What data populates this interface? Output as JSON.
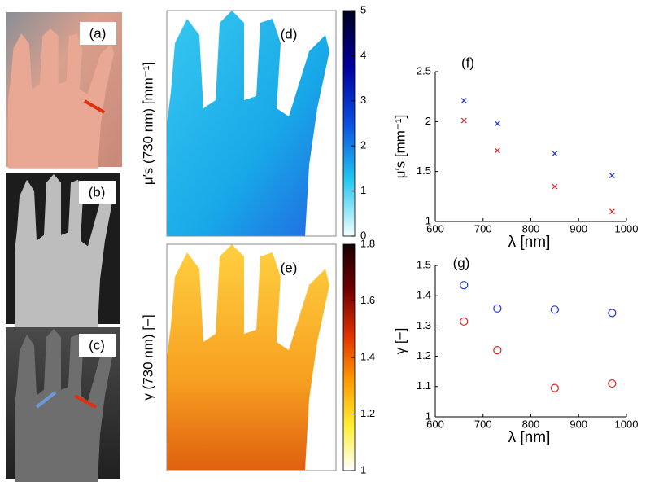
{
  "panels": [
    {
      "label": "(a)"
    },
    {
      "label": "(b)"
    },
    {
      "label": "(c)"
    }
  ],
  "chart_data": [
    {
      "type": "heatmap",
      "label": "(d)",
      "ylabel": "μ′s (730 nm) [mm⁻¹]",
      "colorbar_lim": [
        0,
        5
      ],
      "colorbar_ticks": [
        0,
        1,
        2,
        3,
        4,
        5
      ],
      "colormap": [
        "#f2ffff",
        "#22c8f0",
        "#0a4fe0",
        "#0000a0",
        "#00001e"
      ]
    },
    {
      "type": "heatmap",
      "label": "(e)",
      "ylabel": "γ (730 nm) [−]",
      "colorbar_lim": [
        1,
        1.8
      ],
      "colorbar_ticks": [
        1,
        1.2,
        1.4,
        1.6,
        1.8
      ],
      "colormap": [
        "#ffffff",
        "#ffee30",
        "#ff9a00",
        "#e03000",
        "#700000",
        "#1a0000"
      ]
    },
    {
      "type": "scatter",
      "label": "(f)",
      "xlabel": "λ [nm]",
      "ylabel": "μ′s [mm⁻¹]",
      "marker": "x",
      "xlim": [
        600,
        1000
      ],
      "xticks": [
        600,
        700,
        800,
        900,
        1000
      ],
      "ylim": [
        1,
        2.5
      ],
      "yticks": [
        1,
        1.5,
        2,
        2.5
      ],
      "series": [
        {
          "color": "#2233cc",
          "x": [
            660,
            730,
            850,
            970
          ],
          "values": [
            2.21,
            1.98,
            1.68,
            1.46
          ]
        },
        {
          "color": "#dd2222",
          "x": [
            660,
            730,
            850,
            970
          ],
          "values": [
            2.01,
            1.71,
            1.35,
            1.1
          ]
        }
      ]
    },
    {
      "type": "scatter",
      "label": "(g)",
      "xlabel": "λ [nm]",
      "ylabel": "γ [−]",
      "marker": "o",
      "xlim": [
        600,
        1000
      ],
      "xticks": [
        600,
        700,
        800,
        900,
        1000
      ],
      "ylim": [
        1,
        1.5
      ],
      "yticks": [
        1,
        1.1,
        1.2,
        1.3,
        1.4,
        1.5
      ],
      "series": [
        {
          "color": "#2233cc",
          "x": [
            660,
            730,
            850,
            970
          ],
          "values": [
            1.435,
            1.358,
            1.354,
            1.343
          ]
        },
        {
          "color": "#dd2222",
          "x": [
            660,
            730,
            850,
            970
          ],
          "values": [
            1.315,
            1.22,
            1.095,
            1.11
          ]
        }
      ]
    }
  ]
}
